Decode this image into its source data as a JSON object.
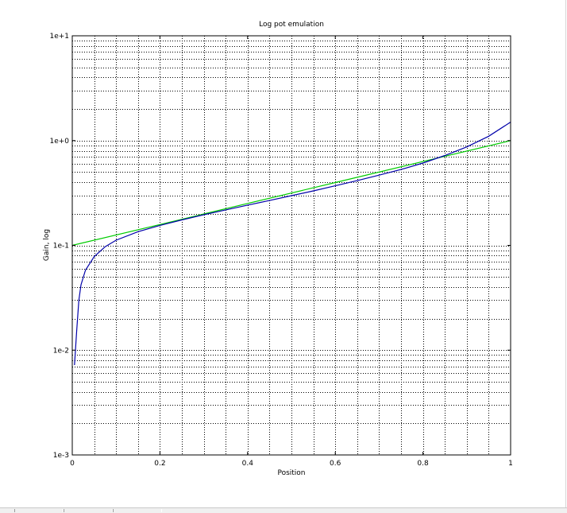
{
  "chart_data": {
    "type": "line",
    "title": "Log pot emulation",
    "xlabel": "Position",
    "ylabel": "Gain, log",
    "x_scale": "linear",
    "y_scale": "log",
    "xlim": [
      0,
      1
    ],
    "ylim": [
      0.001,
      10
    ],
    "x_ticks": [
      "0",
      "0.2",
      "0.4",
      "0.6",
      "0.8",
      "1"
    ],
    "y_ticks": [
      "1e-3",
      "1e-2",
      "1e-1",
      "1e+0",
      "1e+1"
    ],
    "grid": true,
    "grid_style": "dotted",
    "minor_grid": true,
    "legend": "none",
    "series": [
      {
        "color": "#00cc00",
        "x": [
          0,
          0.2,
          0.4,
          0.6,
          0.8,
          1.0
        ],
        "y": [
          0.1,
          0.158,
          0.251,
          0.398,
          0.631,
          1.0
        ]
      },
      {
        "color": "#0000aa",
        "x": [
          0.005,
          0.01,
          0.015,
          0.02,
          0.03,
          0.05,
          0.075,
          0.1,
          0.15,
          0.2,
          0.25,
          0.3,
          0.35,
          0.4,
          0.45,
          0.5,
          0.55,
          0.6,
          0.65,
          0.7,
          0.75,
          0.8,
          0.85,
          0.9,
          0.95,
          1.0
        ],
        "y": [
          0.0072,
          0.015,
          0.03,
          0.042,
          0.058,
          0.078,
          0.097,
          0.112,
          0.135,
          0.155,
          0.175,
          0.196,
          0.218,
          0.242,
          0.268,
          0.298,
          0.331,
          0.37,
          0.415,
          0.468,
          0.53,
          0.61,
          0.72,
          0.87,
          1.1,
          1.5
        ]
      }
    ]
  }
}
